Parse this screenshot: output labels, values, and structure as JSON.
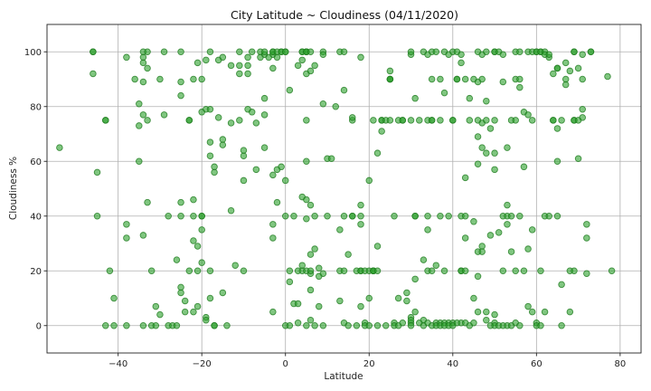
{
  "chart_data": {
    "type": "scatter",
    "title": "City Latitude ~ Cloudiness (04/11/2020)",
    "xlabel": "Latitude",
    "ylabel": "Cloudiness %",
    "xlim": [
      -57,
      85
    ],
    "ylim": [
      -10,
      110
    ],
    "xticks": [
      -40,
      -20,
      0,
      20,
      40,
      60,
      80
    ],
    "yticks": [
      0,
      20,
      40,
      60,
      80,
      100
    ],
    "grid": true,
    "marker_color": "#2ca02c",
    "marker_alpha": 0.6,
    "points": [
      [
        -54,
        65
      ],
      [
        -46,
        100
      ],
      [
        -46,
        100
      ],
      [
        -46,
        92
      ],
      [
        -45,
        56
      ],
      [
        -45,
        40
      ],
      [
        -43,
        75
      ],
      [
        -43,
        75
      ],
      [
        -43,
        0
      ],
      [
        -42,
        20
      ],
      [
        -41,
        10
      ],
      [
        -41,
        0
      ],
      [
        -38,
        98
      ],
      [
        -38,
        32
      ],
      [
        -38,
        37
      ],
      [
        -38,
        0
      ],
      [
        -36,
        90
      ],
      [
        -35,
        73
      ],
      [
        -35,
        60
      ],
      [
        -35,
        81
      ],
      [
        -34,
        100
      ],
      [
        -34,
        98
      ],
      [
        -34,
        96
      ],
      [
        -34,
        89
      ],
      [
        -34,
        77
      ],
      [
        -34,
        33
      ],
      [
        -34,
        0
      ],
      [
        -33,
        45
      ],
      [
        -33,
        100
      ],
      [
        -33,
        94
      ],
      [
        -33,
        75
      ],
      [
        -32,
        20
      ],
      [
        -32,
        0
      ],
      [
        -31,
        7
      ],
      [
        -31,
        0
      ],
      [
        -30,
        4
      ],
      [
        -30,
        90
      ],
      [
        -29,
        100
      ],
      [
        -29,
        77
      ],
      [
        -28,
        40
      ],
      [
        -28,
        0
      ],
      [
        -27,
        0
      ],
      [
        -26,
        24
      ],
      [
        -26,
        0
      ],
      [
        -25,
        100
      ],
      [
        -25,
        89
      ],
      [
        -25,
        84
      ],
      [
        -25,
        45
      ],
      [
        -25,
        40
      ],
      [
        -25,
        14
      ],
      [
        -25,
        12
      ],
      [
        -24,
        9
      ],
      [
        -24,
        5
      ],
      [
        -23,
        20
      ],
      [
        -23,
        75
      ],
      [
        -23,
        75
      ],
      [
        -22,
        90
      ],
      [
        -22,
        46
      ],
      [
        -22,
        31
      ],
      [
        -22,
        40
      ],
      [
        -22,
        5
      ],
      [
        -21,
        96
      ],
      [
        -21,
        20
      ],
      [
        -21,
        29
      ],
      [
        -21,
        7
      ],
      [
        -20,
        23
      ],
      [
        -20,
        40
      ],
      [
        -20,
        40
      ],
      [
        -20,
        35
      ],
      [
        -20,
        90
      ],
      [
        -20,
        78
      ],
      [
        -19,
        3
      ],
      [
        -19,
        2
      ],
      [
        -19,
        97
      ],
      [
        -19,
        79
      ],
      [
        -18,
        100
      ],
      [
        -18,
        79
      ],
      [
        -18,
        67
      ],
      [
        -18,
        62
      ],
      [
        -18,
        10
      ],
      [
        -18,
        20
      ],
      [
        -17,
        0
      ],
      [
        -17,
        0
      ],
      [
        -17,
        56
      ],
      [
        -17,
        58
      ],
      [
        -16,
        97
      ],
      [
        -16,
        76
      ],
      [
        -15,
        98
      ],
      [
        -15,
        66
      ],
      [
        -15,
        68
      ],
      [
        -15,
        12
      ],
      [
        -14,
        0
      ],
      [
        -13,
        95
      ],
      [
        -13,
        74
      ],
      [
        -13,
        42
      ],
      [
        -12,
        22
      ],
      [
        -11,
        100
      ],
      [
        -11,
        95
      ],
      [
        -11,
        92
      ],
      [
        -11,
        75
      ],
      [
        -10,
        62
      ],
      [
        -10,
        64
      ],
      [
        -10,
        20
      ],
      [
        -10,
        53
      ],
      [
        -9,
        98
      ],
      [
        -9,
        92
      ],
      [
        -9,
        95
      ],
      [
        -9,
        79
      ],
      [
        -8,
        100
      ],
      [
        -8,
        78
      ],
      [
        -7,
        74
      ],
      [
        -7,
        57
      ],
      [
        -6,
        100
      ],
      [
        -6,
        98
      ],
      [
        -5,
        99
      ],
      [
        -5,
        100
      ],
      [
        -5,
        83
      ],
      [
        -5,
        77
      ],
      [
        -5,
        65
      ],
      [
        -4,
        98
      ],
      [
        -3,
        100
      ],
      [
        -3,
        99
      ],
      [
        -3,
        100
      ],
      [
        -3,
        94
      ],
      [
        -3,
        55
      ],
      [
        -3,
        37
      ],
      [
        -3,
        32
      ],
      [
        -3,
        5
      ],
      [
        -2,
        100
      ],
      [
        -2,
        98
      ],
      [
        -2,
        45
      ],
      [
        -2,
        57
      ],
      [
        -1,
        100
      ],
      [
        -1,
        100
      ],
      [
        -1,
        58
      ],
      [
        0,
        100
      ],
      [
        0,
        100
      ],
      [
        0,
        53
      ],
      [
        0,
        40
      ],
      [
        0,
        0
      ],
      [
        1,
        86
      ],
      [
        1,
        0
      ],
      [
        1,
        20
      ],
      [
        1,
        16
      ],
      [
        2,
        40
      ],
      [
        2,
        8
      ],
      [
        3,
        95
      ],
      [
        3,
        20
      ],
      [
        3,
        8
      ],
      [
        3,
        1
      ],
      [
        4,
        47
      ],
      [
        4,
        97
      ],
      [
        4,
        100
      ],
      [
        4,
        100
      ],
      [
        4,
        22
      ],
      [
        4,
        20
      ],
      [
        5,
        100
      ],
      [
        5,
        100
      ],
      [
        5,
        100
      ],
      [
        5,
        92
      ],
      [
        5,
        75
      ],
      [
        5,
        60
      ],
      [
        5,
        46
      ],
      [
        5,
        39
      ],
      [
        5,
        20
      ],
      [
        5,
        0
      ],
      [
        6,
        100
      ],
      [
        6,
        93
      ],
      [
        6,
        44
      ],
      [
        6,
        26
      ],
      [
        6,
        19
      ],
      [
        6,
        13
      ],
      [
        6,
        20
      ],
      [
        6,
        2
      ],
      [
        7,
        95
      ],
      [
        7,
        28
      ],
      [
        7,
        40
      ],
      [
        7,
        0
      ],
      [
        8,
        21
      ],
      [
        8,
        18
      ],
      [
        8,
        7
      ],
      [
        9,
        100
      ],
      [
        9,
        99
      ],
      [
        9,
        81
      ],
      [
        9,
        19
      ],
      [
        9,
        0
      ],
      [
        10,
        61
      ],
      [
        10,
        40
      ],
      [
        11,
        61
      ],
      [
        12,
        80
      ],
      [
        13,
        100
      ],
      [
        13,
        35
      ],
      [
        13,
        20
      ],
      [
        13,
        9
      ],
      [
        14,
        100
      ],
      [
        14,
        86
      ],
      [
        14,
        40
      ],
      [
        14,
        20
      ],
      [
        14,
        1
      ],
      [
        15,
        26
      ],
      [
        15,
        0
      ],
      [
        16,
        75
      ],
      [
        16,
        76
      ],
      [
        16,
        40
      ],
      [
        16,
        40
      ],
      [
        17,
        20
      ],
      [
        17,
        0
      ],
      [
        18,
        98
      ],
      [
        18,
        44
      ],
      [
        18,
        40
      ],
      [
        18,
        37
      ],
      [
        18,
        20
      ],
      [
        18,
        20
      ],
      [
        18,
        7
      ],
      [
        19,
        20
      ],
      [
        19,
        1
      ],
      [
        19,
        0
      ],
      [
        20,
        53
      ],
      [
        20,
        20
      ],
      [
        20,
        10
      ],
      [
        20,
        0
      ],
      [
        21,
        75
      ],
      [
        21,
        20
      ],
      [
        21,
        20
      ],
      [
        21,
        20
      ],
      [
        22,
        63
      ],
      [
        22,
        29
      ],
      [
        22,
        20
      ],
      [
        22,
        0
      ],
      [
        23,
        75
      ],
      [
        23,
        71
      ],
      [
        23,
        75
      ],
      [
        24,
        75
      ],
      [
        24,
        0
      ],
      [
        25,
        93
      ],
      [
        25,
        75
      ],
      [
        25,
        90
      ],
      [
        25,
        90
      ],
      [
        25,
        90
      ],
      [
        26,
        40
      ],
      [
        26,
        1
      ],
      [
        26,
        0
      ],
      [
        27,
        75
      ],
      [
        27,
        10
      ],
      [
        27,
        0
      ],
      [
        28,
        75
      ],
      [
        28,
        75
      ],
      [
        28,
        1
      ],
      [
        29,
        12
      ],
      [
        29,
        9
      ],
      [
        30,
        75
      ],
      [
        30,
        99
      ],
      [
        30,
        100
      ],
      [
        30,
        3
      ],
      [
        30,
        1
      ],
      [
        30,
        2
      ],
      [
        30,
        0
      ],
      [
        31,
        83
      ],
      [
        31,
        40
      ],
      [
        31,
        40
      ],
      [
        31,
        17
      ],
      [
        31,
        5
      ],
      [
        32,
        75
      ],
      [
        32,
        1
      ],
      [
        33,
        100
      ],
      [
        33,
        24
      ],
      [
        33,
        2
      ],
      [
        33,
        0
      ],
      [
        34,
        99
      ],
      [
        34,
        75
      ],
      [
        34,
        40
      ],
      [
        34,
        20
      ],
      [
        34,
        35
      ],
      [
        34,
        1
      ],
      [
        35,
        100
      ],
      [
        35,
        90
      ],
      [
        35,
        75
      ],
      [
        35,
        75
      ],
      [
        35,
        20
      ],
      [
        35,
        0
      ],
      [
        36,
        100
      ],
      [
        36,
        22
      ],
      [
        36,
        1
      ],
      [
        36,
        0
      ],
      [
        37,
        90
      ],
      [
        37,
        75
      ],
      [
        37,
        40
      ],
      [
        37,
        1
      ],
      [
        37,
        0
      ],
      [
        38,
        100
      ],
      [
        38,
        85
      ],
      [
        38,
        20
      ],
      [
        38,
        1
      ],
      [
        38,
        0
      ],
      [
        39,
        99
      ],
      [
        39,
        40
      ],
      [
        39,
        1
      ],
      [
        39,
        0
      ],
      [
        40,
        100
      ],
      [
        40,
        75
      ],
      [
        40,
        75
      ],
      [
        40,
        1
      ],
      [
        40,
        0
      ],
      [
        41,
        90
      ],
      [
        41,
        90
      ],
      [
        41,
        100
      ],
      [
        41,
        1
      ],
      [
        42,
        99
      ],
      [
        42,
        96
      ],
      [
        42,
        40
      ],
      [
        42,
        20
      ],
      [
        42,
        20
      ],
      [
        42,
        1
      ],
      [
        43,
        90
      ],
      [
        43,
        54
      ],
      [
        43,
        40
      ],
      [
        43,
        32
      ],
      [
        43,
        20
      ],
      [
        43,
        1
      ],
      [
        44,
        83
      ],
      [
        44,
        75
      ],
      [
        44,
        0
      ],
      [
        45,
        90
      ],
      [
        45,
        38
      ],
      [
        45,
        10
      ],
      [
        45,
        1
      ],
      [
        46,
        100
      ],
      [
        46,
        89
      ],
      [
        46,
        75
      ],
      [
        46,
        69
      ],
      [
        46,
        59
      ],
      [
        46,
        27
      ],
      [
        46,
        18
      ],
      [
        46,
        5
      ],
      [
        47,
        99
      ],
      [
        47,
        90
      ],
      [
        47,
        74
      ],
      [
        47,
        65
      ],
      [
        47,
        29
      ],
      [
        47,
        27
      ],
      [
        48,
        100
      ],
      [
        48,
        82
      ],
      [
        48,
        75
      ],
      [
        48,
        63
      ],
      [
        48,
        5
      ],
      [
        48,
        2
      ],
      [
        49,
        72
      ],
      [
        49,
        33
      ],
      [
        49,
        0
      ],
      [
        50,
        100
      ],
      [
        50,
        100
      ],
      [
        50,
        75
      ],
      [
        50,
        63
      ],
      [
        50,
        57
      ],
      [
        50,
        4
      ],
      [
        50,
        1
      ],
      [
        50,
        0
      ],
      [
        51,
        100
      ],
      [
        51,
        34
      ],
      [
        51,
        0
      ],
      [
        52,
        99
      ],
      [
        52,
        89
      ],
      [
        52,
        40
      ],
      [
        52,
        20
      ],
      [
        52,
        0
      ],
      [
        53,
        65
      ],
      [
        53,
        44
      ],
      [
        53,
        40
      ],
      [
        53,
        37
      ],
      [
        53,
        0
      ],
      [
        54,
        75
      ],
      [
        54,
        27
      ],
      [
        54,
        40
      ],
      [
        54,
        0
      ],
      [
        55,
        100
      ],
      [
        55,
        90
      ],
      [
        55,
        75
      ],
      [
        55,
        20
      ],
      [
        55,
        1
      ],
      [
        56,
        100
      ],
      [
        56,
        90
      ],
      [
        56,
        87
      ],
      [
        56,
        40
      ],
      [
        56,
        0
      ],
      [
        57,
        78
      ],
      [
        57,
        58
      ],
      [
        57,
        20
      ],
      [
        58,
        100
      ],
      [
        58,
        77
      ],
      [
        58,
        28
      ],
      [
        58,
        7
      ],
      [
        59,
        100
      ],
      [
        59,
        75
      ],
      [
        59,
        35
      ],
      [
        59,
        5
      ],
      [
        60,
        100
      ],
      [
        60,
        100
      ],
      [
        60,
        1
      ],
      [
        60,
        0
      ],
      [
        61,
        100
      ],
      [
        61,
        100
      ],
      [
        61,
        20
      ],
      [
        61,
        0
      ],
      [
        62,
        100
      ],
      [
        62,
        99
      ],
      [
        62,
        40
      ],
      [
        62,
        5
      ],
      [
        63,
        98
      ],
      [
        63,
        99
      ],
      [
        63,
        40
      ],
      [
        64,
        92
      ],
      [
        64,
        75
      ],
      [
        64,
        75
      ],
      [
        65,
        94
      ],
      [
        65,
        94
      ],
      [
        65,
        60
      ],
      [
        65,
        40
      ],
      [
        65,
        72
      ],
      [
        66,
        75
      ],
      [
        66,
        15
      ],
      [
        66,
        0
      ],
      [
        67,
        96
      ],
      [
        67,
        88
      ],
      [
        67,
        90
      ],
      [
        68,
        93
      ],
      [
        68,
        20
      ],
      [
        68,
        5
      ],
      [
        69,
        100
      ],
      [
        69,
        100
      ],
      [
        69,
        75
      ],
      [
        69,
        75
      ],
      [
        69,
        20
      ],
      [
        70,
        75
      ],
      [
        70,
        61
      ],
      [
        70,
        94
      ],
      [
        71,
        99
      ],
      [
        71,
        90
      ],
      [
        71,
        79
      ],
      [
        71,
        76
      ],
      [
        72,
        37
      ],
      [
        72,
        32
      ],
      [
        72,
        19
      ],
      [
        73,
        100
      ],
      [
        73,
        100
      ],
      [
        77,
        91
      ],
      [
        78,
        20
      ]
    ]
  }
}
